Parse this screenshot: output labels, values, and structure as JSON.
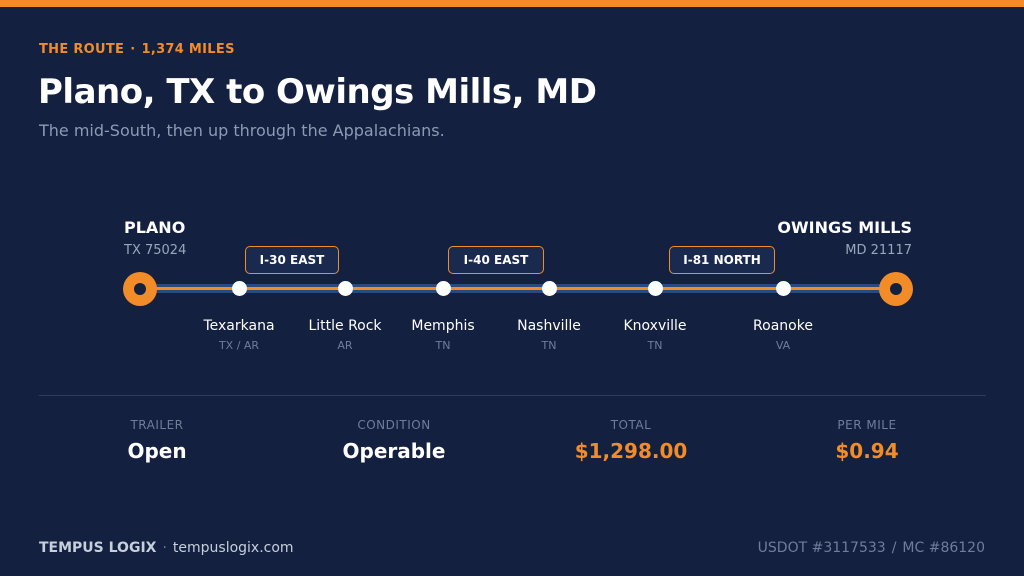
{
  "accent_color": "#f28c28",
  "background_color": "#132040",
  "header": {
    "eyebrow_label": "THE ROUTE",
    "eyebrow_separator": "·",
    "eyebrow_miles": "1,374 MILES",
    "title": "Plano, TX to Owings Mills, MD",
    "subtitle": "The mid-South, then up through the Appalachians."
  },
  "route": {
    "origin": {
      "name": "PLANO",
      "sub": "TX 75024"
    },
    "destination": {
      "name": "OWINGS MILLS",
      "sub": "MD 21117"
    },
    "highways": [
      "I-30 EAST",
      "I-40 EAST",
      "I-81 NORTH"
    ],
    "stops": [
      {
        "name": "Texarkana",
        "state": "TX / AR"
      },
      {
        "name": "Little Rock",
        "state": "AR"
      },
      {
        "name": "Memphis",
        "state": "TN"
      },
      {
        "name": "Nashville",
        "state": "TN"
      },
      {
        "name": "Knoxville",
        "state": "TN"
      },
      {
        "name": "Roanoke",
        "state": "VA"
      }
    ]
  },
  "stats": [
    {
      "label": "TRAILER",
      "value": "Open"
    },
    {
      "label": "CONDITION",
      "value": "Operable"
    },
    {
      "label": "TOTAL",
      "value": "$1,298.00"
    },
    {
      "label": "PER MILE",
      "value": "$0.94"
    }
  ],
  "footer": {
    "brand": "TEMPUS LOGIX",
    "separator": "·",
    "website": "tempuslogix.com",
    "usdot": "USDOT #3117533",
    "slash": "/",
    "mc": "MC #86120"
  }
}
